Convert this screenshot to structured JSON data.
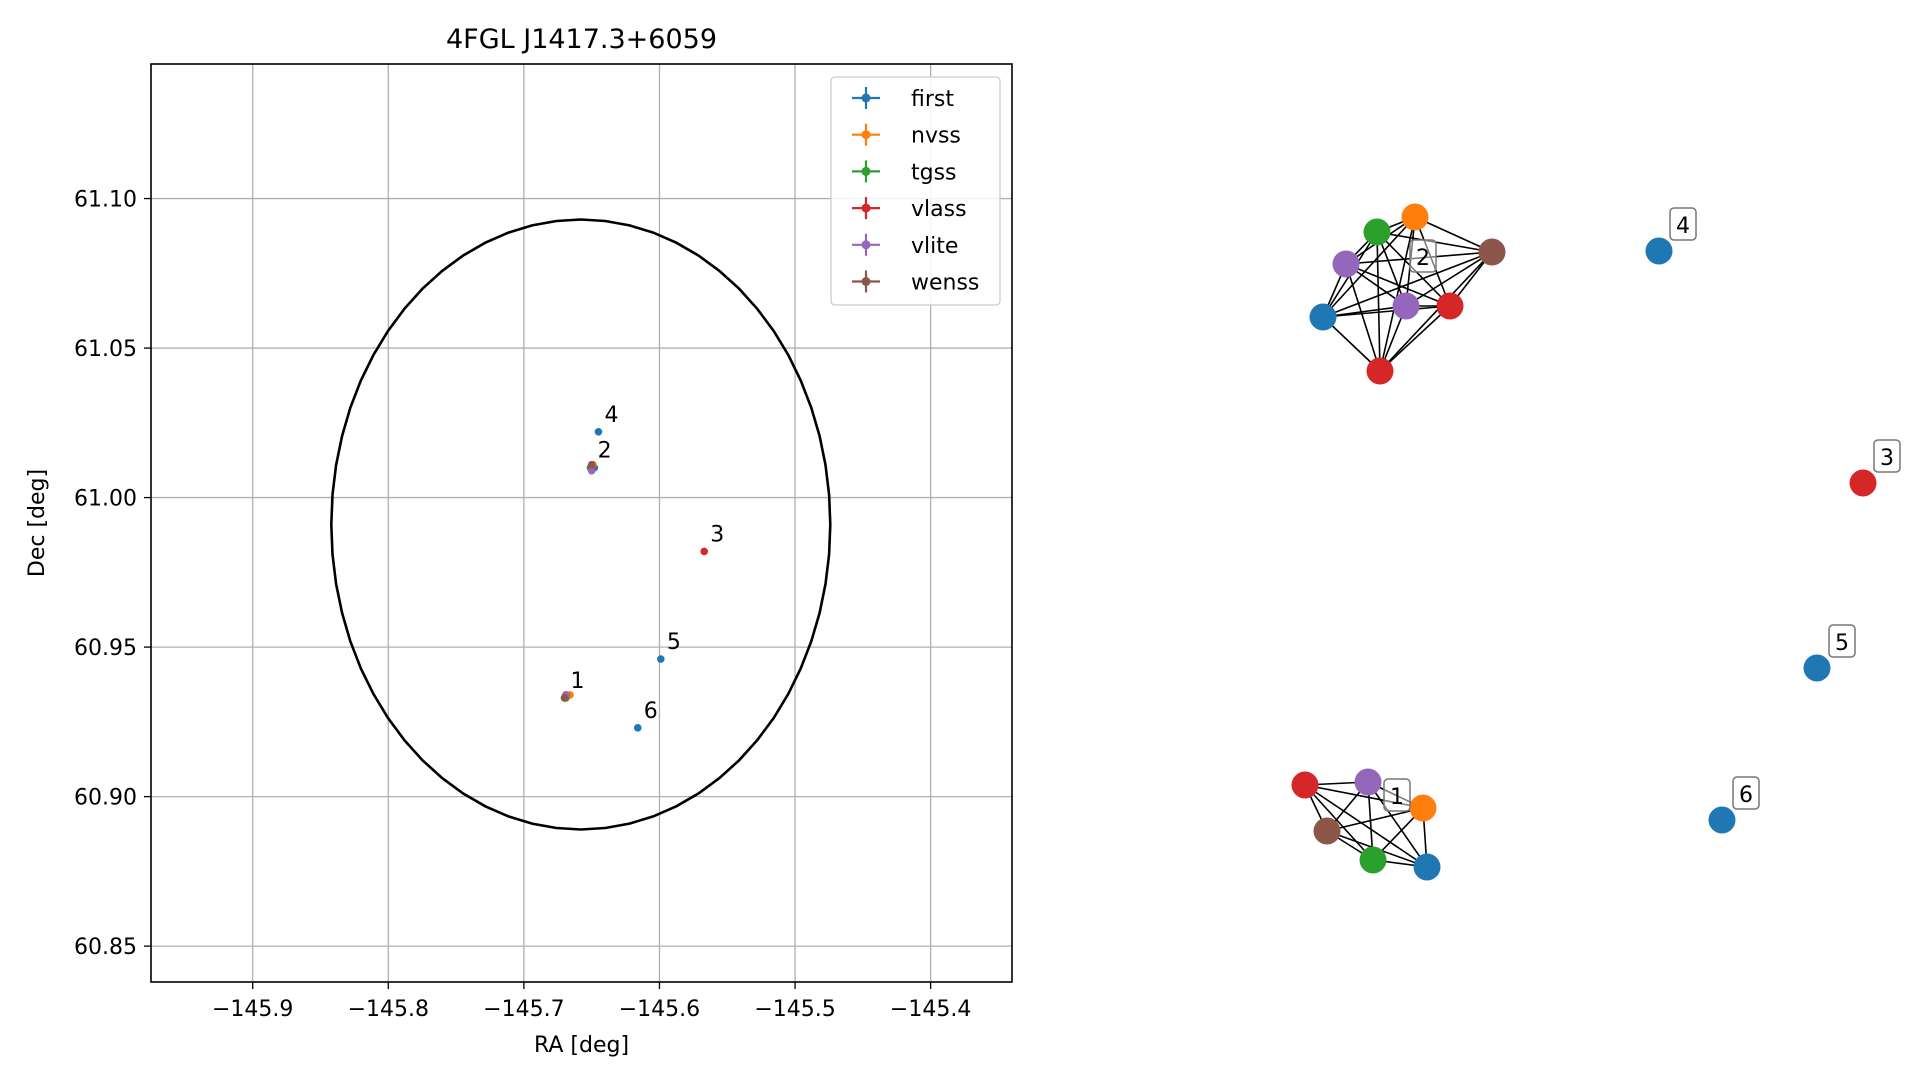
{
  "colors": {
    "first": "#1f77b4",
    "nvss": "#ff7f0e",
    "tgss": "#2ca02c",
    "vlass": "#d62728",
    "vlite": "#9467bd",
    "wenss": "#8c564b"
  },
  "chart_data": [
    {
      "type": "scatter",
      "title": "4FGL J1417.3+6059",
      "xlabel": "RA [deg]",
      "ylabel": "Dec [deg]",
      "xlim": [
        -145.975,
        -145.34
      ],
      "ylim": [
        60.838,
        61.145
      ],
      "xticks": [
        -145.9,
        -145.8,
        -145.7,
        -145.6,
        -145.5,
        -145.4
      ],
      "xtick_labels": [
        "−145.9",
        "−145.8",
        "−145.7",
        "−145.6",
        "−145.5",
        "−145.4"
      ],
      "yticks": [
        60.85,
        60.9,
        60.95,
        61.0,
        61.05,
        61.1
      ],
      "ytick_labels": [
        "60.85",
        "60.90",
        "60.95",
        "61.00",
        "61.05",
        "61.10"
      ],
      "grid": true,
      "legend_position": "top-right",
      "legend": [
        "first",
        "nvss",
        "tgss",
        "vlass",
        "vlite",
        "wenss"
      ],
      "ellipse": {
        "center": [
          -145.658,
          60.991
        ],
        "semi_ra": 0.184,
        "semi_dec": 0.102
      },
      "series": [
        {
          "name": "first",
          "x": [
            -145.67,
            -145.648,
            -145.645,
            -145.599,
            -145.616
          ],
          "y": [
            60.933,
            61.01,
            61.022,
            60.946,
            60.923
          ]
        },
        {
          "name": "nvss",
          "x": [
            -145.666,
            -145.649
          ],
          "y": [
            60.934,
            61.011
          ]
        },
        {
          "name": "tgss",
          "x": [
            -145.669,
            -145.651
          ],
          "y": [
            60.933,
            61.01
          ]
        },
        {
          "name": "vlass",
          "x": [
            -145.669,
            -145.65,
            -145.567
          ],
          "y": [
            60.934,
            61.01,
            60.982
          ]
        },
        {
          "name": "vlite",
          "x": [
            -145.669,
            -145.65
          ],
          "y": [
            60.934,
            61.009
          ]
        },
        {
          "name": "wenss",
          "x": [
            -145.67,
            -145.65
          ],
          "y": [
            60.933,
            61.011
          ]
        }
      ],
      "annotations": [
        {
          "text": "1",
          "x": -145.67,
          "y": 60.933
        },
        {
          "text": "2",
          "x": -145.65,
          "y": 61.01
        },
        {
          "text": "3",
          "x": -145.567,
          "y": 60.982
        },
        {
          "text": "4",
          "x": -145.645,
          "y": 61.022
        },
        {
          "text": "5",
          "x": -145.599,
          "y": 60.946
        },
        {
          "text": "6",
          "x": -145.616,
          "y": 60.923
        }
      ]
    },
    {
      "type": "network",
      "nodes": [
        {
          "id": "c2-first",
          "survey": "first"
        },
        {
          "id": "c2-nvss",
          "survey": "nvss"
        },
        {
          "id": "c2-tgss",
          "survey": "tgss"
        },
        {
          "id": "c2-vlass-a",
          "survey": "vlass"
        },
        {
          "id": "c2-vlass-b",
          "survey": "vlass"
        },
        {
          "id": "c2-vlite-a",
          "survey": "vlite"
        },
        {
          "id": "c2-vlite-b",
          "survey": "vlite"
        },
        {
          "id": "c2-wenss",
          "survey": "wenss"
        },
        {
          "id": "c1-first",
          "survey": "first"
        },
        {
          "id": "c1-nvss",
          "survey": "nvss"
        },
        {
          "id": "c1-tgss",
          "survey": "tgss"
        },
        {
          "id": "c1-vlass",
          "survey": "vlass"
        },
        {
          "id": "c1-vlite",
          "survey": "vlite"
        },
        {
          "id": "c1-wenss",
          "survey": "wenss"
        },
        {
          "id": "n4",
          "survey": "first"
        },
        {
          "id": "n3",
          "survey": "vlass"
        },
        {
          "id": "n5",
          "survey": "first"
        },
        {
          "id": "n6",
          "survey": "first"
        }
      ],
      "cluster_edges": [
        [
          "c2-first",
          "c2-nvss",
          "c2-tgss",
          "c2-vlass-a",
          "c2-vlass-b",
          "c2-vlite-a",
          "c2-vlite-b",
          "c2-wenss"
        ],
        [
          "c1-first",
          "c1-nvss",
          "c1-tgss",
          "c1-vlass",
          "c1-vlite",
          "c1-wenss"
        ]
      ],
      "labels": [
        "1",
        "2",
        "3",
        "4",
        "5",
        "6"
      ]
    }
  ]
}
